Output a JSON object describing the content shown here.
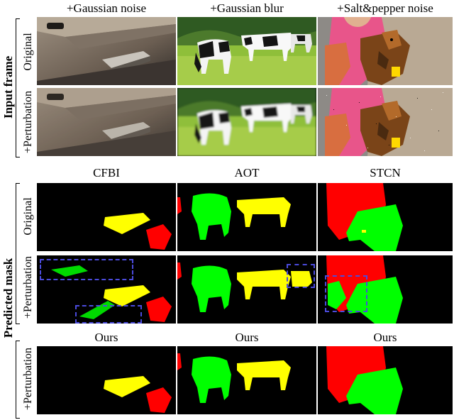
{
  "top_columns": [
    "+Gaussian noise",
    "+Gaussian blur",
    "+Salt&pepper noise"
  ],
  "groups": {
    "input": "Input frame",
    "predicted": "Predicted mask"
  },
  "row_labels": {
    "original": "Original",
    "perturbation": "+Perturbation"
  },
  "method_columns": [
    "CFBI",
    "AOT",
    "STCN"
  ],
  "ours_columns": [
    "Ours",
    "Ours",
    "Ours"
  ],
  "colors": {
    "object_yellow": "#ffff00",
    "object_green": "#00ff00",
    "object_red": "#ff0000",
    "highlight_box": "#4b4bdc"
  }
}
